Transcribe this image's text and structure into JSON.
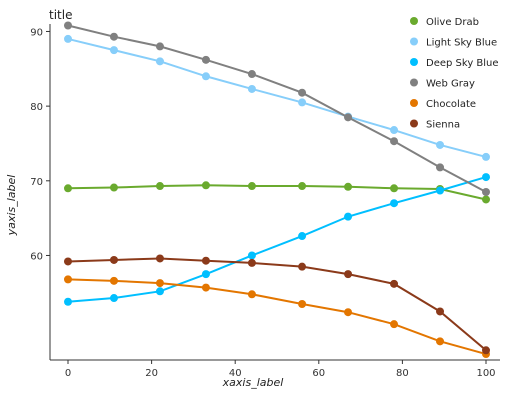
{
  "chart_data": {
    "type": "line",
    "title": "title",
    "xlabel": "xaxis_label",
    "ylabel": "yaxis_label",
    "xlim": [
      0,
      100
    ],
    "ylim": [
      46,
      91
    ],
    "x_ticks": [
      0,
      20,
      40,
      60,
      80,
      100
    ],
    "y_ticks": [
      60,
      70,
      80,
      90
    ],
    "grid": false,
    "legend_position": "right",
    "x": [
      0,
      11,
      22,
      33,
      44,
      56,
      67,
      78,
      89,
      100
    ],
    "series": [
      {
        "name": "Olive Drab",
        "color": "#6aaa2e",
        "values": [
          69.0,
          69.1,
          69.3,
          69.4,
          69.3,
          69.3,
          69.2,
          69.0,
          68.9,
          67.5
        ]
      },
      {
        "name": "Light Sky Blue",
        "color": "#87cefa",
        "values": [
          89.0,
          87.5,
          86.0,
          84.0,
          82.3,
          80.5,
          78.6,
          76.8,
          74.8,
          73.2
        ]
      },
      {
        "name": "Deep Sky Blue",
        "color": "#00bfff",
        "values": [
          53.8,
          54.3,
          55.2,
          57.5,
          60.0,
          62.6,
          65.2,
          67.0,
          68.7,
          70.5
        ]
      },
      {
        "name": "Web Gray",
        "color": "#808080",
        "values": null
      },
      {
        "name": "Chocolate",
        "color": "#e37600",
        "values": [
          56.8,
          56.6,
          56.3,
          55.7,
          54.8,
          53.5,
          52.4,
          50.8,
          48.5,
          46.8
        ]
      },
      {
        "name": "Sienna",
        "color": "#8b3a1a",
        "values": [
          59.2,
          59.4,
          59.6,
          59.3,
          59.0,
          58.5,
          57.5,
          56.2,
          52.5,
          47.3
        ]
      }
    ],
    "web_gray_x": [
      0,
      11,
      22,
      33,
      44,
      56,
      67,
      78,
      89,
      100
    ],
    "web_gray_values": [
      90.8,
      89.3,
      88.0,
      86.2,
      84.3,
      81.8,
      78.5,
      75.3,
      71.8,
      68.5
    ]
  }
}
